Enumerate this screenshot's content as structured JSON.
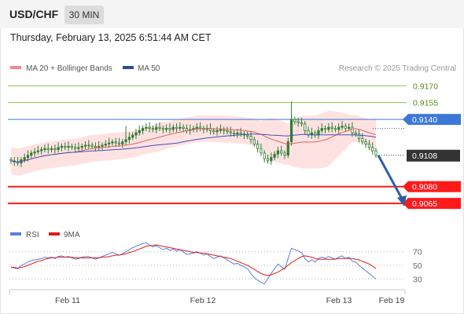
{
  "header": {
    "pair": "USD/CHF",
    "timeframe": "30 MIN",
    "timestamp": "Thursday, February 13, 2025 6:51:44 AM CET"
  },
  "legend": {
    "ma20": "MA 20 + Bollinger Bands",
    "ma50": "MA 50",
    "credit": "Research © 2025 Trading Central",
    "rsi": "RSI",
    "rsi_ma": "9MA"
  },
  "colors": {
    "candle": "#2e7d32",
    "ma20": "#e35f5f",
    "ma50": "#3f51b5",
    "bollinger": "#fdd8d8",
    "resistance": "#8bc34a",
    "pivot": "#3d78d8",
    "support": "#ff1a1a",
    "arrow": "#2d5ea5",
    "rsi": "#5c7fd9",
    "rsi_ma": "#e11b1b"
  },
  "chart_data": {
    "type": "candlestick",
    "y_range": [
      9049,
      9180
    ],
    "x_ticks": [
      "Feb 11",
      "Feb 12",
      "Feb 13",
      "Feb 19"
    ],
    "levels": [
      {
        "name": "resistance-2",
        "value": "0.9170",
        "num": 0.917,
        "kind": "resistance"
      },
      {
        "name": "resistance-1",
        "value": "0.9155",
        "num": 0.9155,
        "kind": "resistance"
      },
      {
        "name": "pivot",
        "value": "0.9140",
        "num": 0.914,
        "kind": "pivot"
      },
      {
        "name": "current",
        "value": "0.9108",
        "num": 0.9108,
        "kind": "current"
      },
      {
        "name": "support-1",
        "value": "0.9080",
        "num": 0.908,
        "kind": "support"
      },
      {
        "name": "support-2",
        "value": "0.9065",
        "num": 0.9065,
        "kind": "support"
      }
    ],
    "closes": [
      9103,
      9102,
      9101,
      9104,
      9106,
      9108,
      9110,
      9111,
      9112,
      9113,
      9114,
      9113,
      9114,
      9113,
      9115,
      9116,
      9115,
      9116,
      9115,
      9114,
      9115,
      9116,
      9117,
      9117,
      9116,
      9115,
      9116,
      9117,
      9118,
      9119,
      9120,
      9119,
      9118,
      9120,
      9122,
      9124,
      9126,
      9128,
      9130,
      9132,
      9133,
      9132,
      9131,
      9133,
      9132,
      9131,
      9132,
      9131,
      9133,
      9132,
      9133,
      9132,
      9130,
      9131,
      9132,
      9133,
      9132,
      9131,
      9132,
      9130,
      9129,
      9130,
      9131,
      9130,
      9129,
      9128,
      9127,
      9128,
      9127,
      9126,
      9125,
      9122,
      9118,
      9114,
      9110,
      9105,
      9103,
      9106,
      9109,
      9112,
      9110,
      9108,
      9120,
      9140,
      9138,
      9137,
      9136,
      9130,
      9126,
      9128,
      9126,
      9130,
      9132,
      9131,
      9133,
      9132,
      9131,
      9133,
      9134,
      9132,
      9133,
      9128,
      9127,
      9123,
      9120,
      9118,
      9115,
      9112,
      9108
    ],
    "rsi_scale": [
      70,
      50,
      30
    ],
    "rsi": [
      48,
      46,
      45,
      50,
      52,
      55,
      57,
      58,
      59,
      60,
      62,
      61,
      62,
      60,
      63,
      64,
      62,
      63,
      61,
      59,
      60,
      62,
      63,
      63,
      61,
      59,
      61,
      63,
      65,
      67,
      69,
      67,
      65,
      67,
      70,
      73,
      76,
      78,
      80,
      82,
      83,
      80,
      77,
      79,
      76,
      73,
      75,
      72,
      74,
      71,
      73,
      70,
      66,
      67,
      68,
      70,
      68,
      65,
      67,
      63,
      60,
      62,
      64,
      61,
      58,
      55,
      52,
      53,
      50,
      48,
      45,
      38,
      32,
      28,
      25,
      23,
      30,
      38,
      45,
      52,
      48,
      44,
      60,
      75,
      73,
      71,
      69,
      60,
      55,
      58,
      55,
      60,
      62,
      60,
      63,
      61,
      59,
      62,
      64,
      60,
      62,
      56,
      55,
      50,
      46,
      42,
      38,
      34,
      30
    ],
    "rsi_ma": [
      47,
      47,
      46,
      47,
      48,
      50,
      52,
      54,
      56,
      57,
      59,
      60,
      61,
      61,
      62,
      62,
      62,
      62,
      62,
      61,
      61,
      61,
      61,
      61,
      61,
      61,
      61,
      62,
      62,
      63,
      64,
      65,
      65,
      66,
      67,
      69,
      70,
      72,
      74,
      76,
      78,
      79,
      79,
      80,
      79,
      78,
      77,
      76,
      75,
      74,
      73,
      72,
      71,
      70,
      69,
      69,
      68,
      68,
      67,
      66,
      65,
      64,
      63,
      62,
      61,
      60,
      58,
      56,
      54,
      52,
      50,
      47,
      44,
      41,
      38,
      36,
      35,
      36,
      38,
      40,
      43,
      46,
      50,
      54,
      57,
      60,
      63,
      64,
      63,
      62,
      60,
      59,
      59,
      59,
      59,
      59,
      59,
      60,
      60,
      60,
      60,
      60,
      59,
      58,
      56,
      54,
      52,
      49,
      45
    ]
  }
}
